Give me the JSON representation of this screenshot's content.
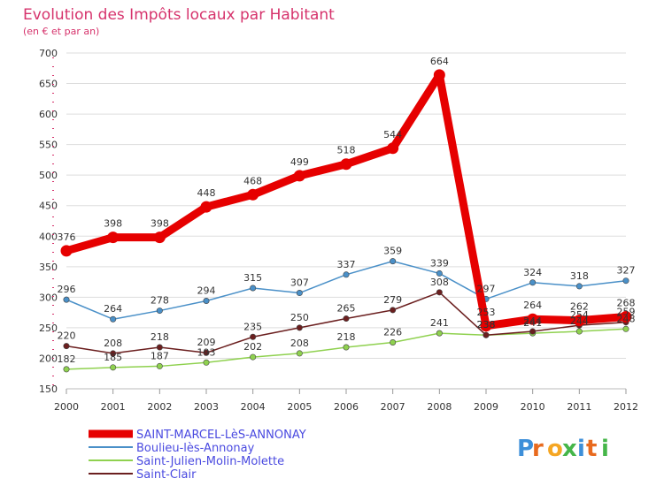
{
  "chart_data": {
    "type": "line",
    "title": "Evolution des Impôts locaux par Habitant",
    "subtitle": "(en € et par an)",
    "categories": [
      "2000",
      "2001",
      "2002",
      "2003",
      "2004",
      "2005",
      "2006",
      "2007",
      "2008",
      "2009",
      "2010",
      "2011",
      "2012"
    ],
    "ylim": [
      150,
      700
    ],
    "yticks": [
      150,
      200,
      250,
      300,
      350,
      400,
      450,
      500,
      550,
      600,
      650,
      700
    ],
    "series": [
      {
        "name": "SAINT-MARCEL-LèS-ANNONAY",
        "color": "#e60000",
        "highlight": true,
        "values": [
          376,
          398,
          398,
          448,
          468,
          499,
          518,
          544,
          664,
          253,
          264,
          262,
          268
        ]
      },
      {
        "name": "Boulieu-lès-Annonay",
        "color": "#4a90c8",
        "highlight": false,
        "values": [
          296,
          264,
          278,
          294,
          315,
          307,
          337,
          359,
          339,
          297,
          324,
          318,
          327
        ]
      },
      {
        "name": "Saint-Julien-Molin-Molette",
        "color": "#8fd14f",
        "highlight": false,
        "values": [
          182,
          185,
          187,
          193,
          202,
          208,
          218,
          226,
          241,
          238,
          241,
          244,
          248
        ]
      },
      {
        "name": "Saint-Clair",
        "color": "#6b1f1f",
        "highlight": false,
        "values": [
          220,
          208,
          218,
          209,
          235,
          250,
          265,
          279,
          308,
          238,
          244,
          254,
          259
        ]
      }
    ],
    "data_labels": {
      "SAINT-MARCEL-LèS-ANNONAY": [
        "376",
        "398",
        "398",
        "448",
        "468",
        "499",
        "518",
        "544",
        "664",
        "253",
        "264",
        "262",
        "268"
      ],
      "Boulieu-lès-Annonay": [
        "296",
        "264",
        "278",
        "294",
        "315",
        "307",
        "337",
        "359",
        "339",
        "297",
        "324",
        "318",
        "327"
      ],
      "Saint-Julien-Molin-Molette": [
        "182",
        "185",
        "187",
        "193",
        "202",
        "208",
        "218",
        "226",
        "241",
        "238",
        "241",
        "244",
        "248"
      ],
      "Saint-Clair": [
        "220",
        "208",
        "218",
        "209",
        "235",
        "250",
        "265",
        "279",
        "308",
        "238",
        "244",
        "254",
        "259"
      ]
    },
    "legend_position": "bottom-left"
  },
  "logo": {
    "text": "Proxiti"
  }
}
